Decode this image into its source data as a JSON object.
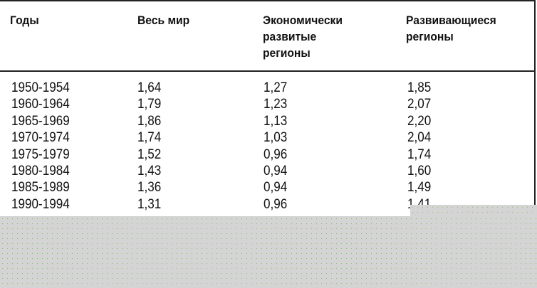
{
  "table": {
    "headers": [
      "Годы",
      "Весь мир",
      "Экономически развитые регионы",
      "Развивающиеся регионы"
    ],
    "header_lines": [
      [
        "Годы"
      ],
      [
        "Весь мир"
      ],
      [
        "Экономически",
        "развитые",
        "регионы"
      ],
      [
        "Развивающиеся",
        "регионы"
      ]
    ],
    "rows": [
      [
        "1950-1954",
        "1,64",
        "1,27",
        "1,85"
      ],
      [
        "1960-1964",
        "1,79",
        "1,23",
        "2,07"
      ],
      [
        "1965-1969",
        "1,86",
        "1,13",
        "2,20"
      ],
      [
        "1970-1974",
        "1,74",
        "1,03",
        "2,04"
      ],
      [
        "1975-1979",
        "1,52",
        "0,96",
        "1,74"
      ],
      [
        "1980-1984",
        "1,43",
        "0,94",
        "1,60"
      ],
      [
        "1985-1989",
        "1,36",
        "0,94",
        "1,49"
      ],
      [
        "1990-1994",
        "1,31",
        "0,96",
        "1,41"
      ]
    ]
  },
  "colors": {
    "overlay": "#d4d4d4",
    "rule": "#222222"
  }
}
